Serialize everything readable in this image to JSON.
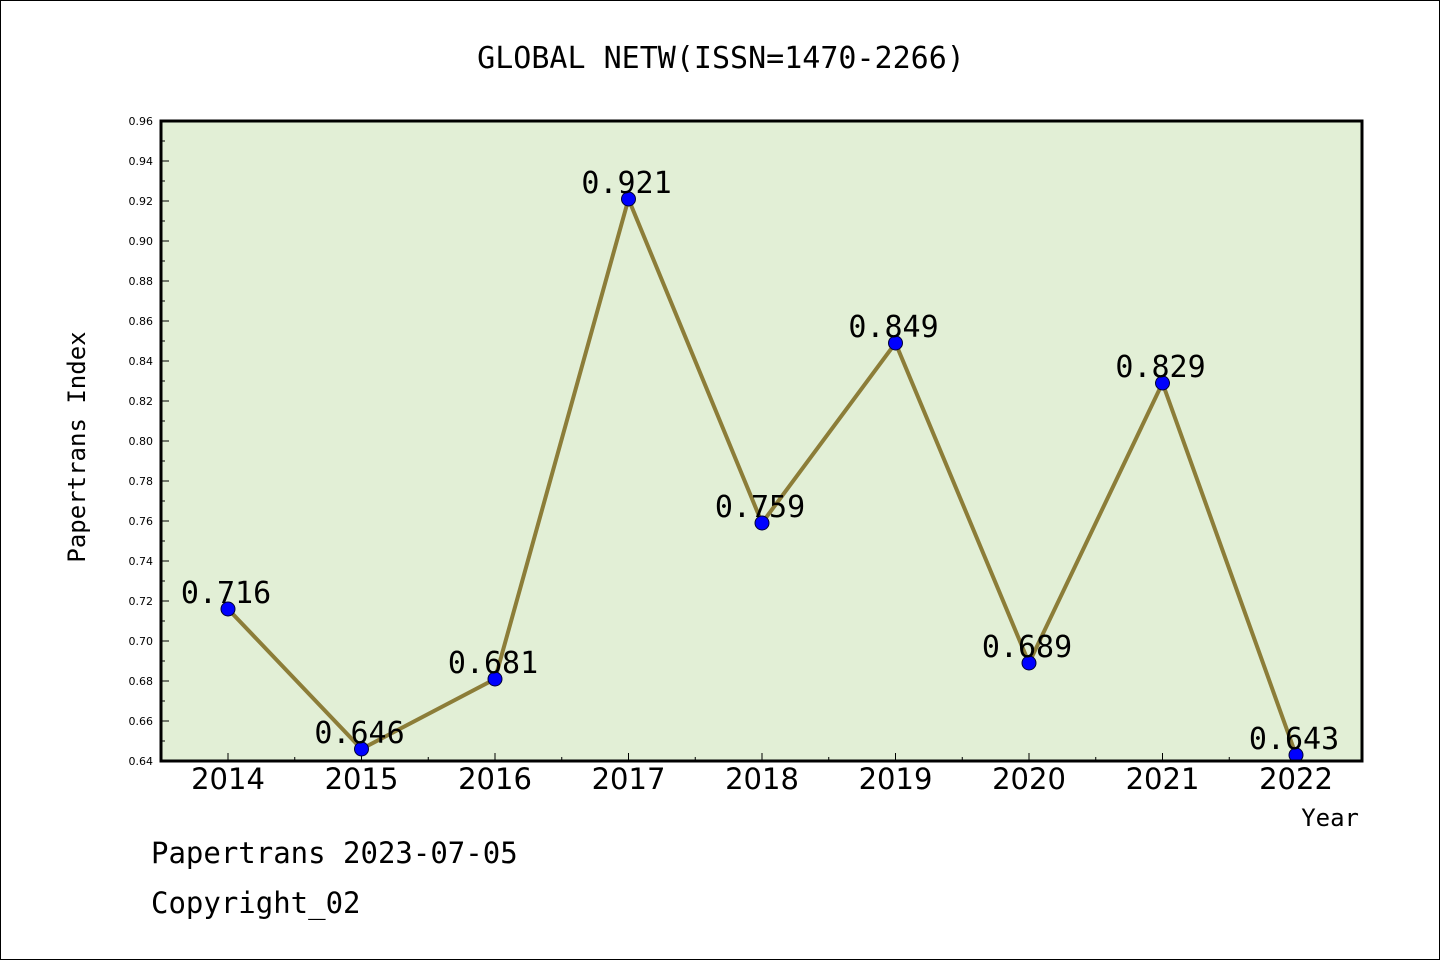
{
  "chart_data": {
    "type": "line",
    "title": "GLOBAL NETW(ISSN=1470-2266)",
    "xlabel": "Year",
    "ylabel": "Papertrans Index",
    "categories": [
      "2014",
      "2015",
      "2016",
      "2017",
      "2018",
      "2019",
      "2020",
      "2021",
      "2022"
    ],
    "series": [
      {
        "values": [
          0.716,
          0.646,
          0.681,
          0.921,
          0.759,
          0.849,
          0.689,
          0.829,
          0.643
        ]
      }
    ],
    "data_labels": [
      "0.716",
      "0.646",
      "0.681",
      "0.921",
      "0.759",
      "0.849",
      "0.689",
      "0.829",
      "0.643"
    ],
    "ylim": [
      0.64,
      0.96
    ],
    "yticks": [
      "0.64",
      "0.66",
      "0.68",
      "0.70",
      "0.72",
      "0.74",
      "0.76",
      "0.78",
      "0.80",
      "0.82",
      "0.84",
      "0.86",
      "0.88",
      "0.90",
      "0.92",
      "0.94",
      "0.96"
    ],
    "grid": false,
    "colors": {
      "plot_background": "#e2efd6",
      "line": "#8c7d38",
      "marker": "#0000ff"
    }
  },
  "footer": {
    "line1": "Papertrans 2023-07-05",
    "line2": "Copyright_02"
  }
}
